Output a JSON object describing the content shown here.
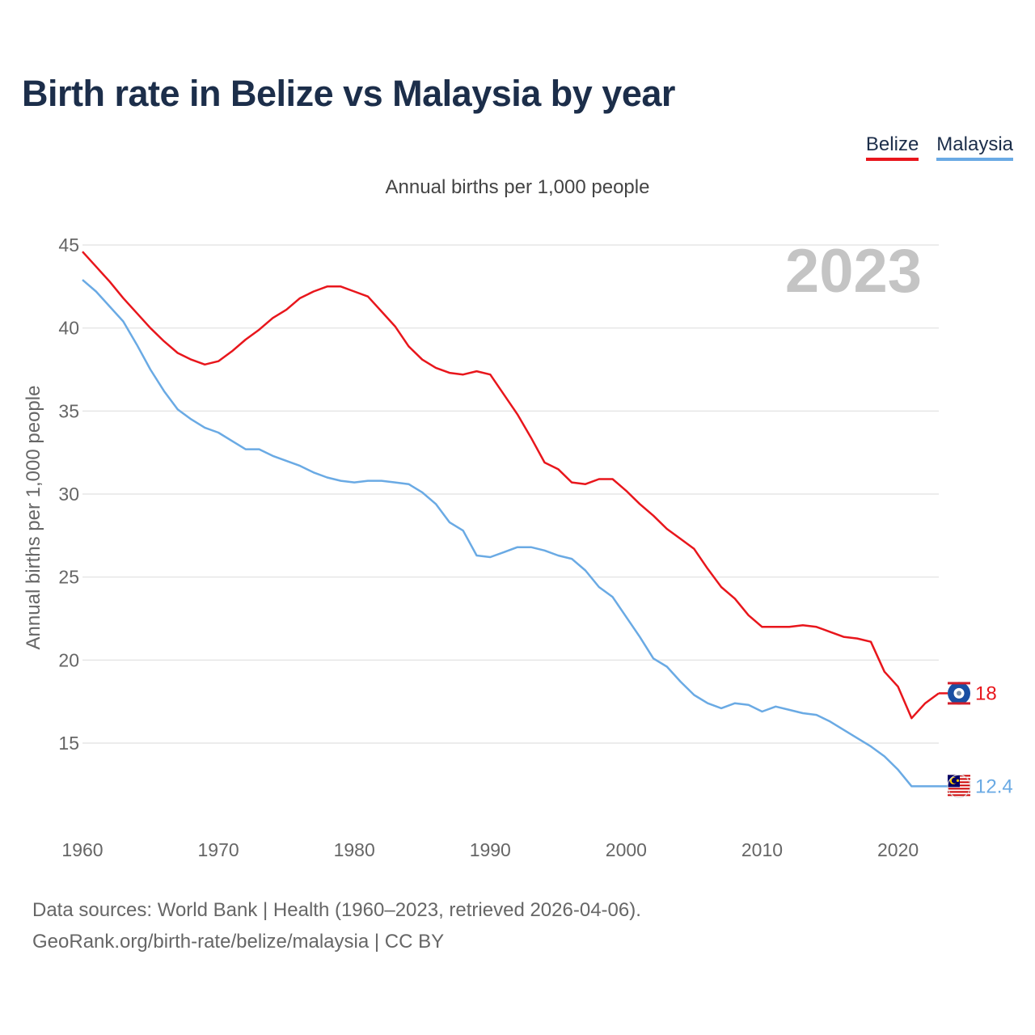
{
  "chart_data": {
    "type": "line",
    "title": "Birth rate in Belize vs Malaysia by year",
    "subtitle": "Annual births per 1,000 people",
    "ylabel": "Annual births per 1,000 people",
    "xlabel": "",
    "year_label": "2023",
    "x_ticks": [
      "1960",
      "1970",
      "1980",
      "1990",
      "2000",
      "2010",
      "2020"
    ],
    "y_ticks": [
      "15",
      "20",
      "25",
      "30",
      "35",
      "40",
      "45"
    ],
    "xlim": [
      1960,
      2023
    ],
    "ylim": [
      10,
      45
    ],
    "grid": true,
    "legend_position": "top-right",
    "colors": {
      "Belize": "#e8161c",
      "Malaysia": "#6aaae4"
    },
    "series": [
      {
        "name": "Belize",
        "end_label": "18",
        "values": [
          44.6,
          43.7,
          42.8,
          41.8,
          40.9,
          40.0,
          39.2,
          38.5,
          38.1,
          37.8,
          38.0,
          38.6,
          39.3,
          39.9,
          40.6,
          41.1,
          41.8,
          42.2,
          42.5,
          42.5,
          42.2,
          41.9,
          41.0,
          40.1,
          38.9,
          38.1,
          37.6,
          37.3,
          37.2,
          37.4,
          37.2,
          36.0,
          34.8,
          33.4,
          31.9,
          31.5,
          30.7,
          30.6,
          30.9,
          30.9,
          30.2,
          29.4,
          28.7,
          27.9,
          27.3,
          26.7,
          25.5,
          24.4,
          23.7,
          22.7,
          22.0,
          22.0,
          22.0,
          22.1,
          22.0,
          21.7,
          21.4,
          21.3,
          21.1,
          19.3,
          18.4,
          16.5,
          17.4,
          18.0
        ]
      },
      {
        "name": "Malaysia",
        "end_label": "12.4",
        "values": [
          42.9,
          42.2,
          41.3,
          40.4,
          39.0,
          37.5,
          36.2,
          35.1,
          34.5,
          34.0,
          33.7,
          33.2,
          32.7,
          32.7,
          32.3,
          32.0,
          31.7,
          31.3,
          31.0,
          30.8,
          30.7,
          30.8,
          30.8,
          30.7,
          30.6,
          30.1,
          29.4,
          28.3,
          27.8,
          26.3,
          26.2,
          26.5,
          26.8,
          26.8,
          26.6,
          26.3,
          26.1,
          25.4,
          24.4,
          23.8,
          22.6,
          21.4,
          20.1,
          19.6,
          18.7,
          17.9,
          17.4,
          17.1,
          17.4,
          17.3,
          16.9,
          17.2,
          17.0,
          16.8,
          16.7,
          16.3,
          15.8,
          15.3,
          14.8,
          14.2,
          13.4,
          12.4,
          12.4,
          12.4
        ]
      }
    ]
  },
  "legend": {
    "belize": "Belize",
    "malaysia": "Malaysia"
  },
  "source": {
    "line1": "Data sources: World Bank | Health (1960–2023, retrieved 2026-04-06).",
    "line2": "GeoRank.org/birth-rate/belize/malaysia | CC BY"
  }
}
